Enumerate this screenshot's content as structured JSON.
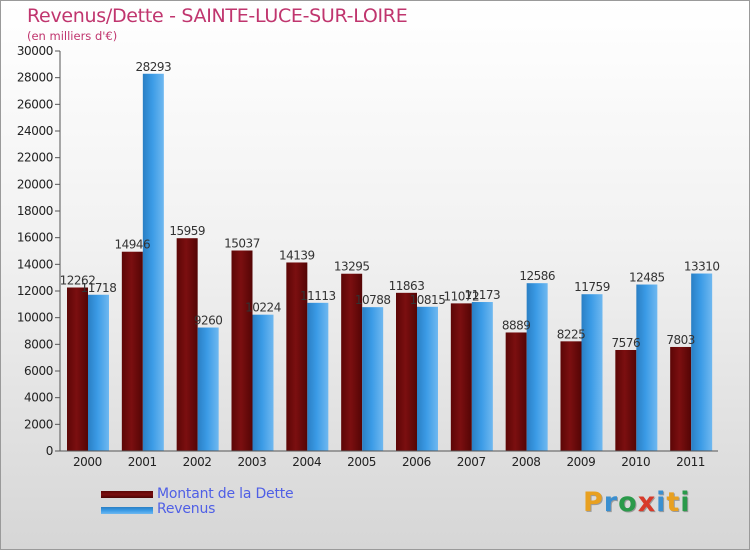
{
  "title": "Revenus/Dette - SAINTE-LUCE-SUR-LOIRE",
  "subtitle": "(en milliers d'€)",
  "logo": {
    "text": "Proxiti",
    "colors": [
      "#e8a020",
      "#3a8fd0",
      "#2a9a4a",
      "#d83a2a",
      "#3a8fd0",
      "#e8a020",
      "#2a9a4a"
    ]
  },
  "colors": {
    "dette": "#7b0f10",
    "revenus": "#3b9be6",
    "title": "#c0356e",
    "legend_text": "#4f5fe6"
  },
  "chart_data": {
    "type": "bar",
    "title": "Revenus/Dette - SAINTE-LUCE-SUR-LOIRE",
    "categories": [
      "2000",
      "2001",
      "2002",
      "2003",
      "2004",
      "2005",
      "2006",
      "2007",
      "2008",
      "2009",
      "2010",
      "2011"
    ],
    "series": [
      {
        "name": "Montant de la Dette",
        "values": [
          12262,
          14946,
          15959,
          15037,
          14139,
          13295,
          11863,
          11072,
          8889,
          8225,
          7576,
          7803
        ]
      },
      {
        "name": "Revenus",
        "values": [
          11718,
          28293,
          9260,
          10224,
          11113,
          10788,
          10815,
          11173,
          12586,
          11759,
          12485,
          13310
        ]
      }
    ],
    "ylim": [
      0,
      30000
    ],
    "yticks": [
      0,
      2000,
      4000,
      6000,
      8000,
      10000,
      12000,
      14000,
      16000,
      18000,
      20000,
      22000,
      24000,
      26000,
      28000,
      30000
    ],
    "grid": false,
    "legend_placement": "bottom-left"
  }
}
